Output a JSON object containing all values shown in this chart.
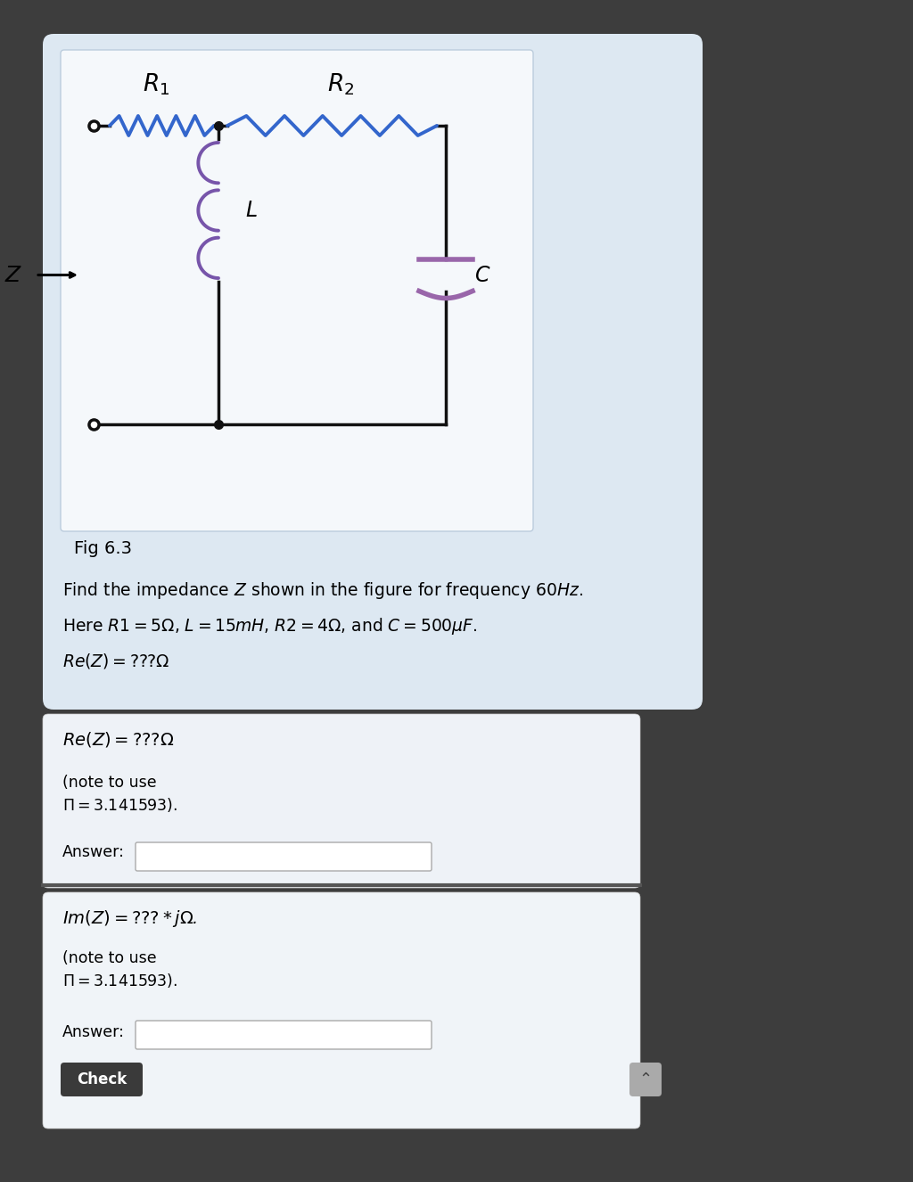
{
  "bg_dark": "#3d3d3d",
  "bg_circuit_panel": "#dde8f2",
  "bg_re_panel": "#eef2f7",
  "bg_im_panel": "#f0f4f8",
  "circuit_box_bg": "#f5f8fb",
  "resistor_color": "#3366cc",
  "inductor_color": "#7755aa",
  "capacitor_color": "#9966aa",
  "wire_color": "#111111",
  "circuit_title": "Fig 6.3",
  "problem_text1": "Find the impedance $Z$ shown in the figure for frequency $60Hz$.",
  "problem_text2": "Here $R1 = 5\\Omega$, $L = 15mH$, $R2 = 4\\Omega$, and $C = 500\\mu F$.",
  "problem_text3": "$Re(Z) = ???\\Omega$",
  "re_label": "$Re(Z) = ???\\Omega$",
  "re_note1": "(note to use",
  "re_note2": "$\\Pi = 3.141593$).",
  "re_answer_label": "Answer:",
  "im_label": "$Im(Z) = ??? * j\\Omega$.",
  "im_note1": "(note to use",
  "im_note2": "$\\Pi = 3.141593$).",
  "im_answer_label": "Answer:",
  "check_label": "Check",
  "r1_label": "$R_1$",
  "r2_label": "$R_2$",
  "l_label": "$L$",
  "c_label": "$C$",
  "z_label": "$Z$"
}
